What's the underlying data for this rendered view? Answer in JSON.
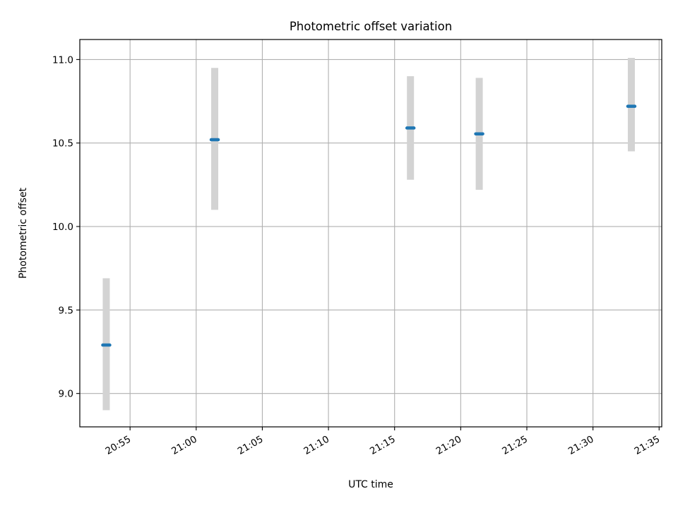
{
  "chart_data": {
    "type": "scatter",
    "title": "Photometric offset variation",
    "xlabel": "UTC time",
    "ylabel": "Photometric offset",
    "x_ticks": [
      "20:55",
      "21:00",
      "21:05",
      "21:10",
      "21:15",
      "21:20",
      "21:25",
      "21:30",
      "21:35"
    ],
    "x_tick_minutes": [
      55,
      60,
      65,
      70,
      75,
      80,
      85,
      90,
      95
    ],
    "xlim_minutes": [
      51.2,
      95.2
    ],
    "y_ticks": [
      9.0,
      9.5,
      10.0,
      10.5,
      11.0
    ],
    "y_tick_labels": [
      "9.0",
      "9.5",
      "10.0",
      "10.5",
      "11.0"
    ],
    "ylim": [
      8.8,
      11.12
    ],
    "grid": true,
    "points": [
      {
        "time": "20:53:12",
        "minutes": 53.2,
        "value": 9.29,
        "lower": 8.9,
        "upper": 9.69
      },
      {
        "time": "21:01:24",
        "minutes": 61.4,
        "value": 10.52,
        "lower": 10.1,
        "upper": 10.95
      },
      {
        "time": "21:16:12",
        "minutes": 76.2,
        "value": 10.59,
        "lower": 10.28,
        "upper": 10.9
      },
      {
        "time": "21:21:24",
        "minutes": 81.4,
        "value": 10.555,
        "lower": 10.22,
        "upper": 10.89
      },
      {
        "time": "21:32:54",
        "minutes": 92.9,
        "value": 10.72,
        "lower": 10.45,
        "upper": 11.01
      }
    ],
    "marker_color": "#1f77b4",
    "errorbar_color": "#d3d3d3",
    "grid_color": "#b0b0b0"
  }
}
